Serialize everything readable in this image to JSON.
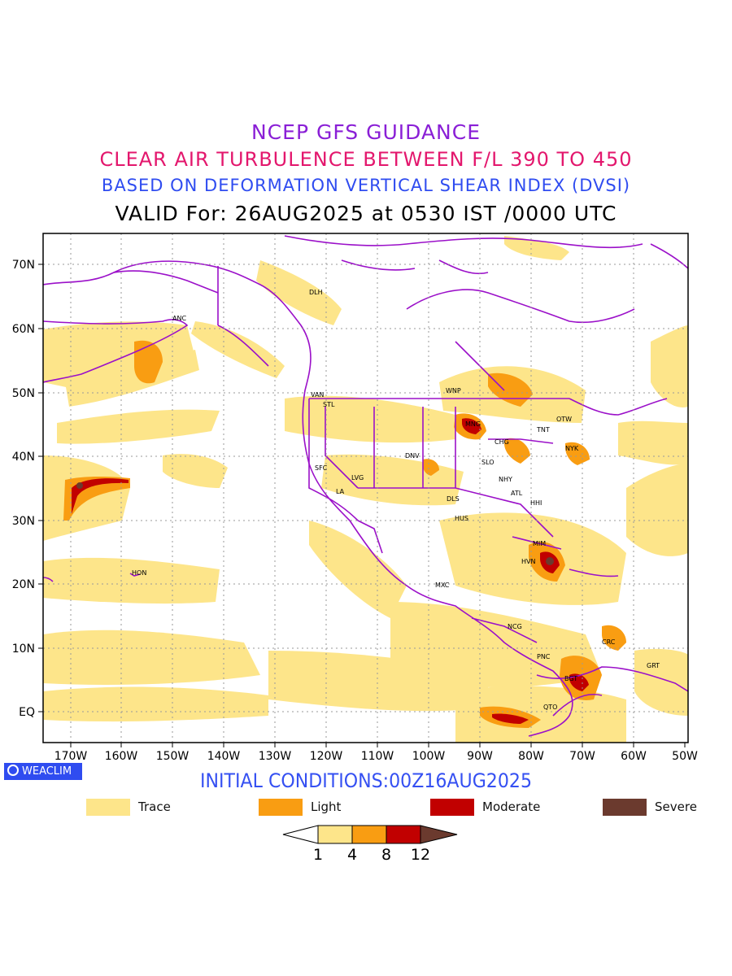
{
  "titles": {
    "line1": "NCEP GFS GUIDANCE",
    "line2": "CLEAR AIR TURBULENCE BETWEEN F/L 390 TO 450",
    "line3": "BASED ON DEFORMATION VERTICAL SHEAR INDEX (DVSI)",
    "line4": "VALID For: 26AUG2025 at 0530 IST /0000 UTC"
  },
  "axes": {
    "lat_labels": [
      "70N",
      "60N",
      "50N",
      "40N",
      "30N",
      "20N",
      "10N",
      "EQ"
    ],
    "lon_labels": [
      "170W",
      "160W",
      "150W",
      "140W",
      "130W",
      "120W",
      "110W",
      "100W",
      "90W",
      "80W",
      "70W",
      "60W",
      "50W"
    ]
  },
  "cities": [
    "DLH",
    "ANC",
    "VAN",
    "STL",
    "WNP",
    "MNG",
    "OTW",
    "TNT",
    "CHG",
    "NYK",
    "DNV",
    "SFC",
    "LVG",
    "SLO",
    "LA",
    "NHY",
    "ATL",
    "DLS",
    "HHI",
    "HUS",
    "MIM",
    "HVN",
    "HON",
    "MXC",
    "NCG",
    "CRC",
    "GRT",
    "PNC",
    "BGT",
    "QTO"
  ],
  "logo": {
    "label": "WEACLIM"
  },
  "initial_conditions": "INITIAL CONDITIONS:00Z16AUG2025",
  "legend": [
    {
      "label": "Trace",
      "color": "#fde58a"
    },
    {
      "label": "Light",
      "color": "#f99d12"
    },
    {
      "label": "Moderate",
      "color": "#c10000"
    },
    {
      "label": "Severe",
      "color": "#6b3a2e"
    }
  ],
  "colorbar": {
    "ticks": [
      "1",
      "4",
      "8",
      "12"
    ],
    "colors": [
      "#ffffff",
      "#fde58a",
      "#f99d12",
      "#c10000",
      "#6b3a2e"
    ]
  },
  "colors": {
    "coastline": "#9b10c9",
    "grid": "#999999"
  }
}
